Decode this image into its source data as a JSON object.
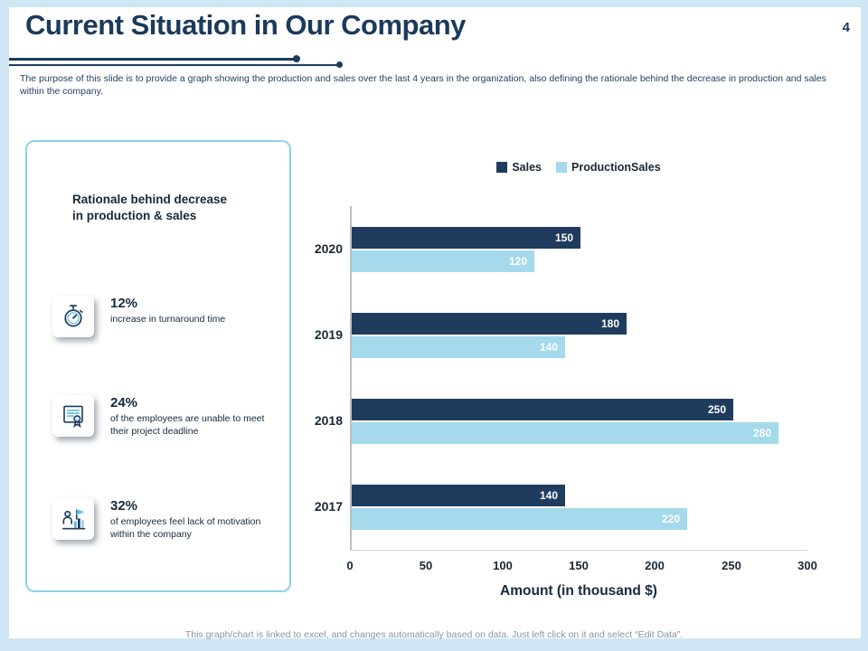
{
  "page": {
    "title": "Current Situation in Our Company",
    "page_number": "4",
    "description": "The purpose of this slide is to provide a graph showing the production and sales over the last 4 years in the organization, also defining the rationale behind the decrease in production and sales within the company.",
    "footer": "This graph/chart is linked to excel, and changes automatically based on data. Just left click on it and select “Edit Data”."
  },
  "rationale": {
    "heading": "Rationale behind decrease in production & sales",
    "items": [
      {
        "icon": "stopwatch-icon",
        "percent": "12%",
        "text": "increase in turnaround time"
      },
      {
        "icon": "certificate-icon",
        "percent": "24%",
        "text": "of the employees are unable to meet their project deadline"
      },
      {
        "icon": "motivation-icon",
        "percent": "32%",
        "text": "of employees feel lack of motivation within the company"
      }
    ]
  },
  "chart_data": {
    "type": "bar",
    "orientation": "horizontal",
    "title": "",
    "categories": [
      "2020",
      "2019",
      "2018",
      "2017"
    ],
    "series": [
      {
        "name": "Sales",
        "color": "#1f3c5e",
        "values": [
          150,
          180,
          250,
          140
        ]
      },
      {
        "name": "ProductionSales",
        "color": "#a5d9ec",
        "values": [
          120,
          140,
          280,
          220
        ]
      }
    ],
    "xlabel": "Amount (in thousand $)",
    "ylabel": "",
    "xlim": [
      0,
      300
    ],
    "xticks": [
      0,
      50,
      100,
      150,
      200,
      250,
      300
    ],
    "grid": false,
    "legend_position": "top",
    "value_label_color": "#ffffff"
  },
  "colors": {
    "navy": "#1f3c5e",
    "light_blue": "#a5d9ec",
    "frame_background": "#cfe7f4",
    "panel_border": "#8ed3e9",
    "footer_text": "#8593a3"
  }
}
